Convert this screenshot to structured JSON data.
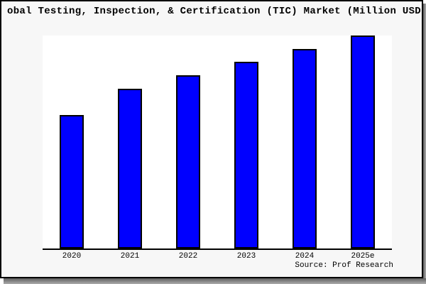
{
  "window": {
    "background": "#ffffff",
    "frame_border_color": "#000000",
    "figure_background": "#f7f7f7",
    "plot_background": "#ffffff",
    "shadow_color": "#8a8a8a"
  },
  "chart_data": {
    "type": "bar",
    "title": "obal Testing, Inspection, & Certification (TIC) Market (Million USD",
    "title_truncated": true,
    "categories": [
      "2020",
      "2021",
      "2022",
      "2023",
      "2024",
      "2025e"
    ],
    "values": [
      62.7,
      75.0,
      81.3,
      87.7,
      93.7,
      100.0
    ],
    "value_note": "no y-axis or data labels shown; values are relative bar heights with tallest bar (2025e) = 100",
    "ylim": [
      0,
      100
    ],
    "xlabel": "",
    "ylabel": "",
    "grid": "off",
    "legend": "none",
    "axis_spines": "bottom only",
    "bar_color": "#0000ff",
    "bar_edge_color": "#000000",
    "source_note": "Source: Prof Research"
  }
}
